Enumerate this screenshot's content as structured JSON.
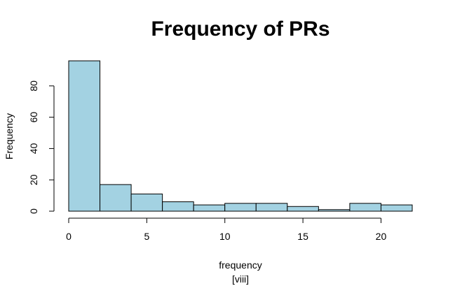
{
  "chart_data": {
    "type": "bar",
    "title": "Frequency of PRs",
    "xlabel": "frequency",
    "subtitle": "[viii]",
    "ylabel": "Frequency",
    "bin_edges": [
      0,
      2,
      4,
      6,
      8,
      10,
      12,
      14,
      16,
      18,
      20,
      22
    ],
    "values": [
      96,
      17,
      11,
      6,
      4,
      5,
      5,
      3,
      1,
      5,
      4
    ],
    "xlim": [
      0,
      22
    ],
    "ylim": [
      0,
      96
    ],
    "x_ticks": [
      "0",
      "5",
      "10",
      "15",
      "20"
    ],
    "y_ticks": [
      "0",
      "20",
      "40",
      "60",
      "80"
    ],
    "grid": false,
    "colors": {
      "bar_fill": "#a3d2e2",
      "bar_stroke": "#000000"
    }
  }
}
